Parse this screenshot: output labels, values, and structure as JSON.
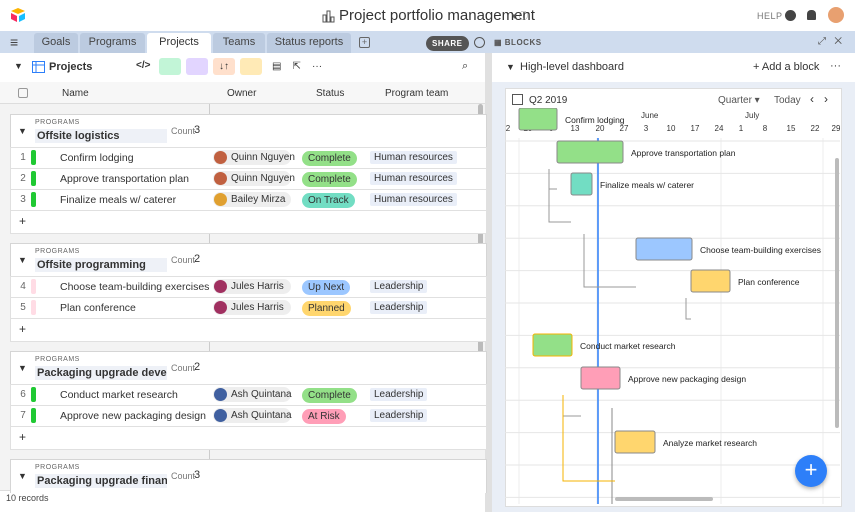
{
  "header": {
    "title": "Project portfolio management",
    "help": "HELP"
  },
  "tabs": {
    "items": [
      "Goals",
      "Programs",
      "Projects",
      "Teams",
      "Status reports"
    ],
    "active": "Projects",
    "share": "SHARE",
    "blocks": "BLOCKS"
  },
  "toolbar": {
    "view": "Projects"
  },
  "grid": {
    "columns": [
      "Name",
      "Owner",
      "Status",
      "Program team"
    ],
    "groups": [
      {
        "label": "PROGRAMS",
        "name": "Offsite logistics",
        "count_label": "Count",
        "count": "3",
        "rows": [
          {
            "n": "1",
            "name": "Confirm lodging",
            "owner": "Quinn Nguyen",
            "status": "Complete",
            "team": "Human resources",
            "color": "#20c933"
          },
          {
            "n": "2",
            "name": "Approve transportation plan",
            "owner": "Quinn Nguyen",
            "status": "Complete",
            "team": "Human resources",
            "color": "#20c933"
          },
          {
            "n": "3",
            "name": "Finalize meals w/ caterer",
            "owner": "Bailey Mirza",
            "status": "On Track",
            "team": "Human resources",
            "color": "#20c933"
          }
        ]
      },
      {
        "label": "PROGRAMS",
        "name": "Offsite programming",
        "count_label": "Count",
        "count": "2",
        "rows": [
          {
            "n": "4",
            "name": "Choose team-building exercises",
            "owner": "Jules Harris",
            "status": "Up Next",
            "team": "Leadership",
            "color": "#ffdce5"
          },
          {
            "n": "5",
            "name": "Plan conference",
            "owner": "Jules Harris",
            "status": "Planned",
            "team": "Leadership",
            "color": "#ffdce5"
          }
        ]
      },
      {
        "label": "PROGRAMS",
        "name": "Packaging upgrade develop",
        "count_label": "Count",
        "count": "2",
        "rows": [
          {
            "n": "6",
            "name": "Conduct market research",
            "owner": "Ash Quintana",
            "status": "Complete",
            "team": "Leadership",
            "color": "#20c933"
          },
          {
            "n": "7",
            "name": "Approve new packaging design",
            "owner": "Ash Quintana",
            "status": "At Risk",
            "team": "Leadership",
            "color": "#20c933"
          }
        ]
      },
      {
        "label": "PROGRAMS",
        "name": "Packaging upgrade finance",
        "count_label": "Count",
        "count": "3",
        "rows": []
      }
    ],
    "footer": "10 records"
  },
  "dashboard": {
    "title": "High-level dashboard",
    "add": "Add a block",
    "period": "Q2 2019",
    "scale": "Quarter",
    "today": "Today",
    "months": [
      "May",
      "June",
      "July"
    ],
    "days": [
      "2",
      "29",
      "6",
      "13",
      "20",
      "27",
      "3",
      "10",
      "17",
      "24",
      "1",
      "8",
      "15",
      "22",
      "29"
    ],
    "tasks": [
      {
        "name": "Confirm lodging",
        "color": "#93e088"
      },
      {
        "name": "Approve transportation plan",
        "color": "#93e088"
      },
      {
        "name": "Finalize meals w/ caterer",
        "color": "#72ddc3"
      },
      {
        "name": "Choose team-building exercises",
        "color": "#9cc7ff"
      },
      {
        "name": "Plan conference",
        "color": "#ffd66e"
      },
      {
        "name": "Conduct market research",
        "color": "#93e088"
      },
      {
        "name": "Approve new packaging design",
        "color": "#ff9eb7"
      },
      {
        "name": "Analyze market research",
        "color": "#ffd66e"
      }
    ]
  }
}
